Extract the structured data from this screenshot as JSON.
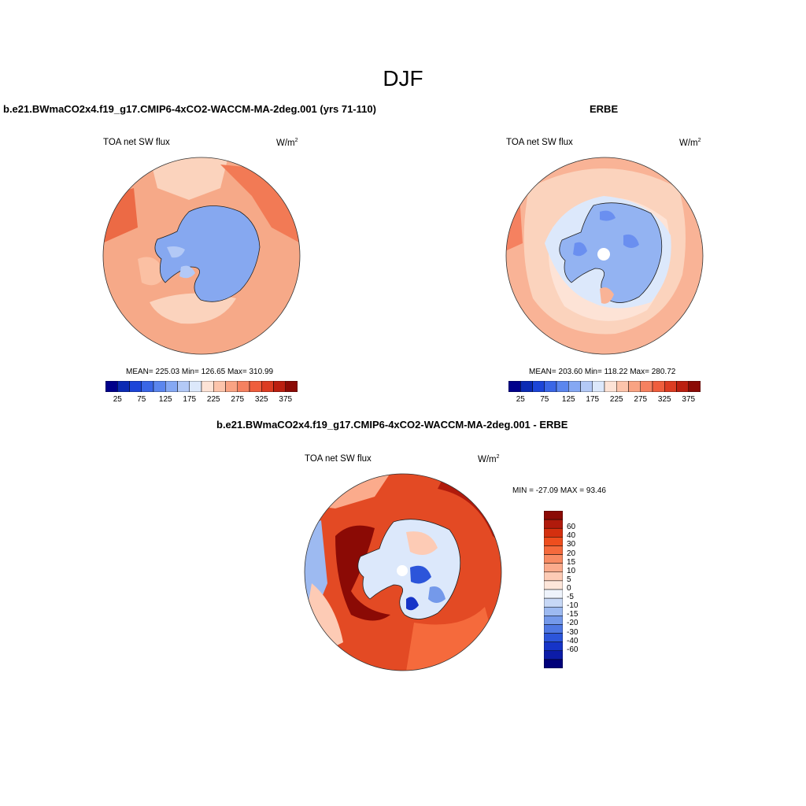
{
  "season_title": "DJF",
  "panels": [
    {
      "title": "b.e21.BWmaCO2x4.f19_g17.CMIP6-4xCO2-WACCM-MA-2deg.001 (yrs 71-110)",
      "variable": "TOA net SW flux",
      "units": "W/m",
      "units_sup": "2",
      "stats": "MEAN= 225.03  Min= 126.65  Max= 310.99"
    },
    {
      "title": "ERBE",
      "variable": "TOA net SW flux",
      "units": "W/m",
      "units_sup": "2",
      "stats": "MEAN= 203.60  Min= 118.22  Max= 280.72"
    },
    {
      "title": "b.e21.BWmaCO2x4.f19_g17.CMIP6-4xCO2-WACCM-MA-2deg.001 - ERBE",
      "variable": "TOA net SW flux",
      "units": "W/m",
      "units_sup": "2",
      "stats": "MIN = -27.09 MAX =  93.46"
    }
  ],
  "colorbar_abs": {
    "colors": [
      "#00008b",
      "#0b2bb4",
      "#1c45d8",
      "#3a66e6",
      "#5b86ee",
      "#85a8f3",
      "#b3c9f6",
      "#dce8fb",
      "#fde3d6",
      "#fcc4ab",
      "#f9a383",
      "#f58160",
      "#ef5e3d",
      "#dc3c22",
      "#bb1f10",
      "#8b0a05"
    ],
    "tick_labels": [
      "25",
      "75",
      "125",
      "175",
      "225",
      "275",
      "325",
      "375"
    ]
  },
  "colorbar_diff": {
    "colors": [
      "#8b0a05",
      "#b01a0c",
      "#d4300f",
      "#ee4e1e",
      "#f56a3c",
      "#f88b63",
      "#fbab8c",
      "#fdcbb5",
      "#fde6da",
      "#eef3fb",
      "#c7d8f6",
      "#9dbaf1",
      "#7499ea",
      "#4f78e3",
      "#2c55da",
      "#1634c8",
      "#0c1ca8",
      "#00007a"
    ],
    "tick_labels": [
      "60",
      "40",
      "30",
      "20",
      "15",
      "10",
      "5",
      "0",
      "-5",
      "-10",
      "-15",
      "-20",
      "-30",
      "-40",
      "-60"
    ]
  },
  "colors": {
    "ocean_model": "#f6a988",
    "ice_model": "#86a8f0",
    "ocean_obs": "#fbd3bd",
    "ice_obs": "#93b3f2",
    "diff_base": "#e34a24"
  }
}
